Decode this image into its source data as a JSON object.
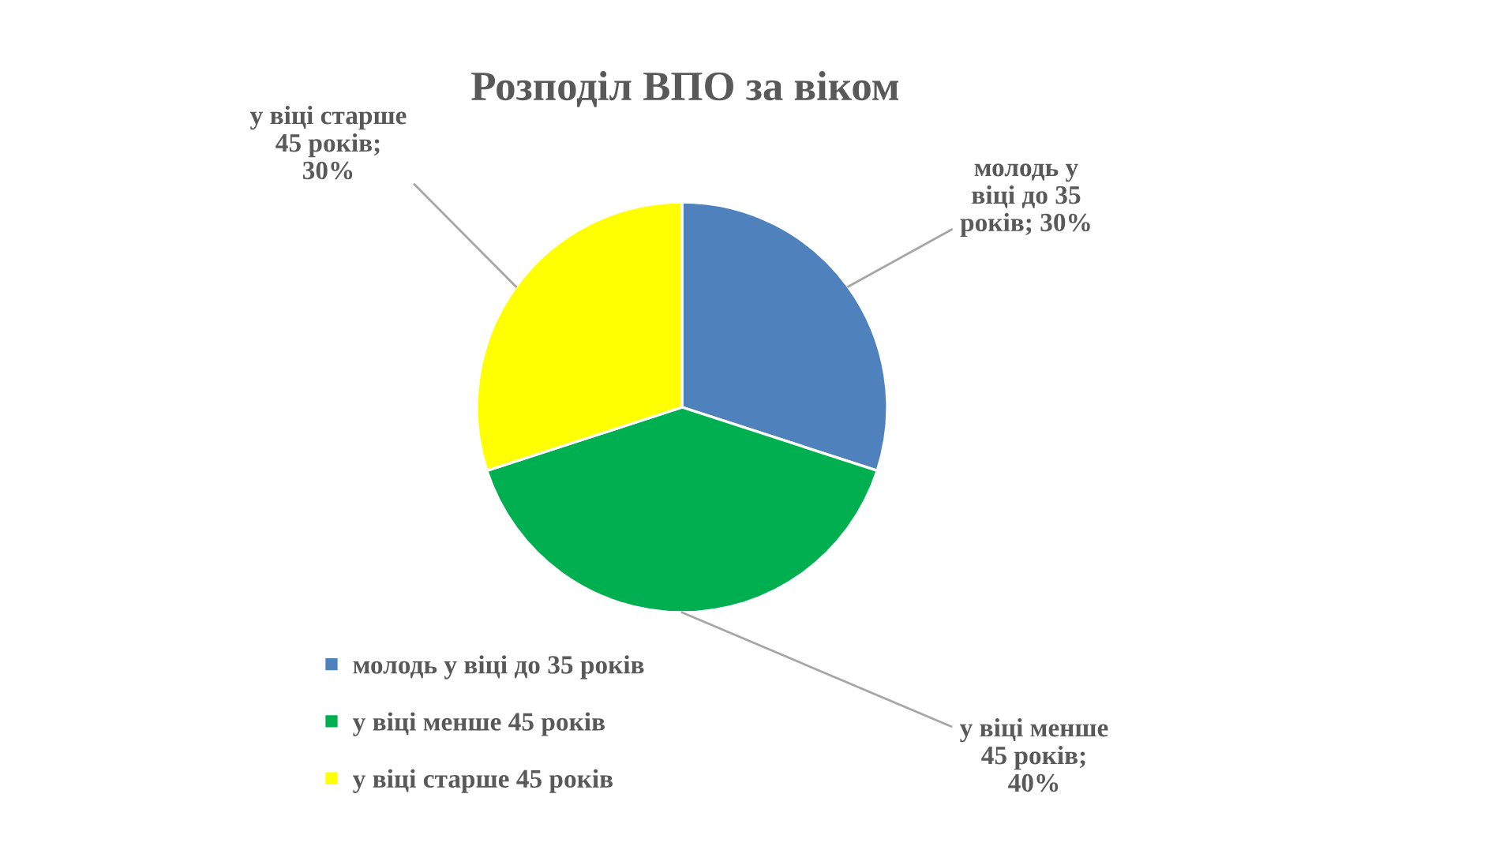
{
  "chart_data": {
    "type": "pie",
    "title": "Розподіл ВПО за віком",
    "categories": [
      "молодь у віці до 35 років",
      "у віці менше 45 років",
      "у віці старше 45 років"
    ],
    "values": [
      30,
      40,
      30
    ],
    "colors": [
      "#4f81bd",
      "#00b050",
      "#ffff00"
    ],
    "value_labels": [
      "молодь у віці до 35 років; 30%",
      "у віці менше 45 років; 40%",
      "у віці старше 45 років; 30%"
    ],
    "legend": "bottom left"
  }
}
